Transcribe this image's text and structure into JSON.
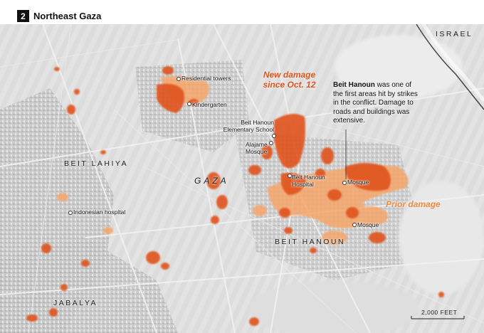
{
  "header": {
    "number": "2",
    "title": "Northeast Gaza"
  },
  "labels": {
    "israel": "ISRAEL",
    "beit_lahiya": "BEIT LAHIYA",
    "gaza": "GAZA",
    "beit_hanoun": "BEIT HANOUN",
    "jabalya": "JABALYA"
  },
  "poi": {
    "residential_towers": "Residential towers",
    "kindergarten": "Kindergarten",
    "elementary_school": "Beit Hanoun Elementary School",
    "alajame_mosque": "Alajame Mosque",
    "hospital": "Beit Hanoun Hospital",
    "mosque_1": "Mosque",
    "mosque_2": "Mosque",
    "indonesian_hospital": "Indonesian hospital"
  },
  "legend": {
    "new_damage": "New damage since Oct. 12",
    "prior_damage": "Prior damage",
    "new_damage_color": "#e0531a",
    "prior_damage_color": "#f5a66b"
  },
  "annotation": {
    "bold": "Beit Hanoun",
    "text": " was one of the first areas hit by strikes in the conflict. Damage to roads and buildings was extensive."
  },
  "scale": {
    "label": "2,000 FEET"
  }
}
